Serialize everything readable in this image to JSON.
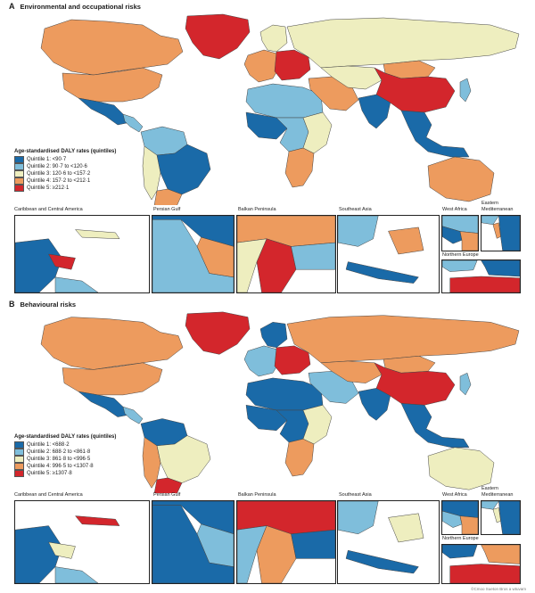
{
  "colors": {
    "q1": "#1a6aa8",
    "q2": "#7fbedb",
    "q3": "#eeeebf",
    "q4": "#ed9b5e",
    "q5": "#d3262c",
    "water": "#ffffff",
    "border": "#444444"
  },
  "panels": [
    {
      "letter": "A",
      "title": "Environmental and occupational risks",
      "legend_title": "Age-standardised DALY rates (quintiles)",
      "legend": [
        "Quintile 1: <90·7",
        "Quintile 2: 90·7 to <120·6",
        "Quintile 3: 120·6 to <157·2",
        "Quintile 4: 157·2 to <212·1",
        "Quintile 5: ≥212·1"
      ],
      "insets": {
        "caribbean": "Caribbean and Central America",
        "persian": "Persian Gulf",
        "balkan": "Balkan Peninsula",
        "seasia": "Southeast Asia",
        "westafrica": "West Africa",
        "eastmed": "Eastern Mediterranean",
        "neurope": "Northern Europe"
      }
    },
    {
      "letter": "B",
      "title": "Behavioural risks",
      "legend_title": "Age-standardised DALY rates (quintiles)",
      "legend": [
        "Quintile 1: <688·2",
        "Quintile 2: 688·2 to <861·8",
        "Quintile 3: 861·8 to <996·5",
        "Quintile 4: 996·5 to <1307·8",
        "Quintile 5: ≥1307·8"
      ],
      "insets": {
        "caribbean": "Caribbean and Central America",
        "persian": "Persian Gulf",
        "balkan": "Balkan Peninsula",
        "seasia": "Southeast Asia",
        "westafrica": "West Africa",
        "eastmed": "Eastern Mediterranean",
        "neurope": "Northern Europe"
      }
    }
  ],
  "regions": {
    "A": {
      "canada": "q4",
      "usa": "q4",
      "greenland": "q5",
      "mexico": "q1",
      "centralam": "q2",
      "northsa": "q2",
      "brazil": "q1",
      "southsa": "q3",
      "argentina": "q4",
      "scandinavia": "q3",
      "westeurope": "q4",
      "easteurope": "q5",
      "russia": "q3",
      "northafrica": "q2",
      "westafrica": "q1",
      "centralafrica": "q2",
      "eastafrica": "q3",
      "southafrica": "q4",
      "middleeast": "q4",
      "centralasia": "q3",
      "india": "q1",
      "china": "q5",
      "mongolia": "q4",
      "seasia": "q1",
      "japan": "q2",
      "australia": "q4"
    },
    "B": {
      "canada": "q4",
      "usa": "q4",
      "greenland": "q5",
      "mexico": "q1",
      "centralam": "q2",
      "northsa": "q1",
      "brazil": "q3",
      "southsa": "q4",
      "argentina": "q5",
      "scandinavia": "q1",
      "westeurope": "q2",
      "easteurope": "q5",
      "russia": "q4",
      "northafrica": "q1",
      "westafrica": "q1",
      "centralafrica": "q1",
      "eastafrica": "q3",
      "southafrica": "q4",
      "middleeast": "q2",
      "centralasia": "q4",
      "india": "q1",
      "china": "q5",
      "mongolia": "q4",
      "seasia": "q1",
      "japan": "q2",
      "australia": "q3"
    }
  },
  "insets_fill": {
    "A": {
      "caribbean": [
        "q1",
        "q3",
        "q5",
        "q2"
      ],
      "persian": [
        "q1",
        "q2",
        "q4"
      ],
      "balkan": [
        "q4",
        "q5",
        "q2",
        "q3"
      ],
      "seasia": [
        "q2",
        "q4",
        "q1"
      ],
      "westafrica": [
        "q2",
        "q1",
        "q4"
      ],
      "eastmed": [
        "q1",
        "q4",
        "q2"
      ],
      "neurope": [
        "q2",
        "q5",
        "q1"
      ]
    },
    "B": {
      "caribbean": [
        "q1",
        "q5",
        "q3",
        "q2"
      ],
      "persian": [
        "q1",
        "q1",
        "q2"
      ],
      "balkan": [
        "q5",
        "q4",
        "q1",
        "q2"
      ],
      "seasia": [
        "q2",
        "q3",
        "q1"
      ],
      "westafrica": [
        "q1",
        "q2",
        "q4"
      ],
      "eastmed": [
        "q1",
        "q3",
        "q2"
      ],
      "neurope": [
        "q1",
        "q5",
        "q4"
      ]
    }
  },
  "footer": "©Cmoo Sueton Bros a wtuvam"
}
